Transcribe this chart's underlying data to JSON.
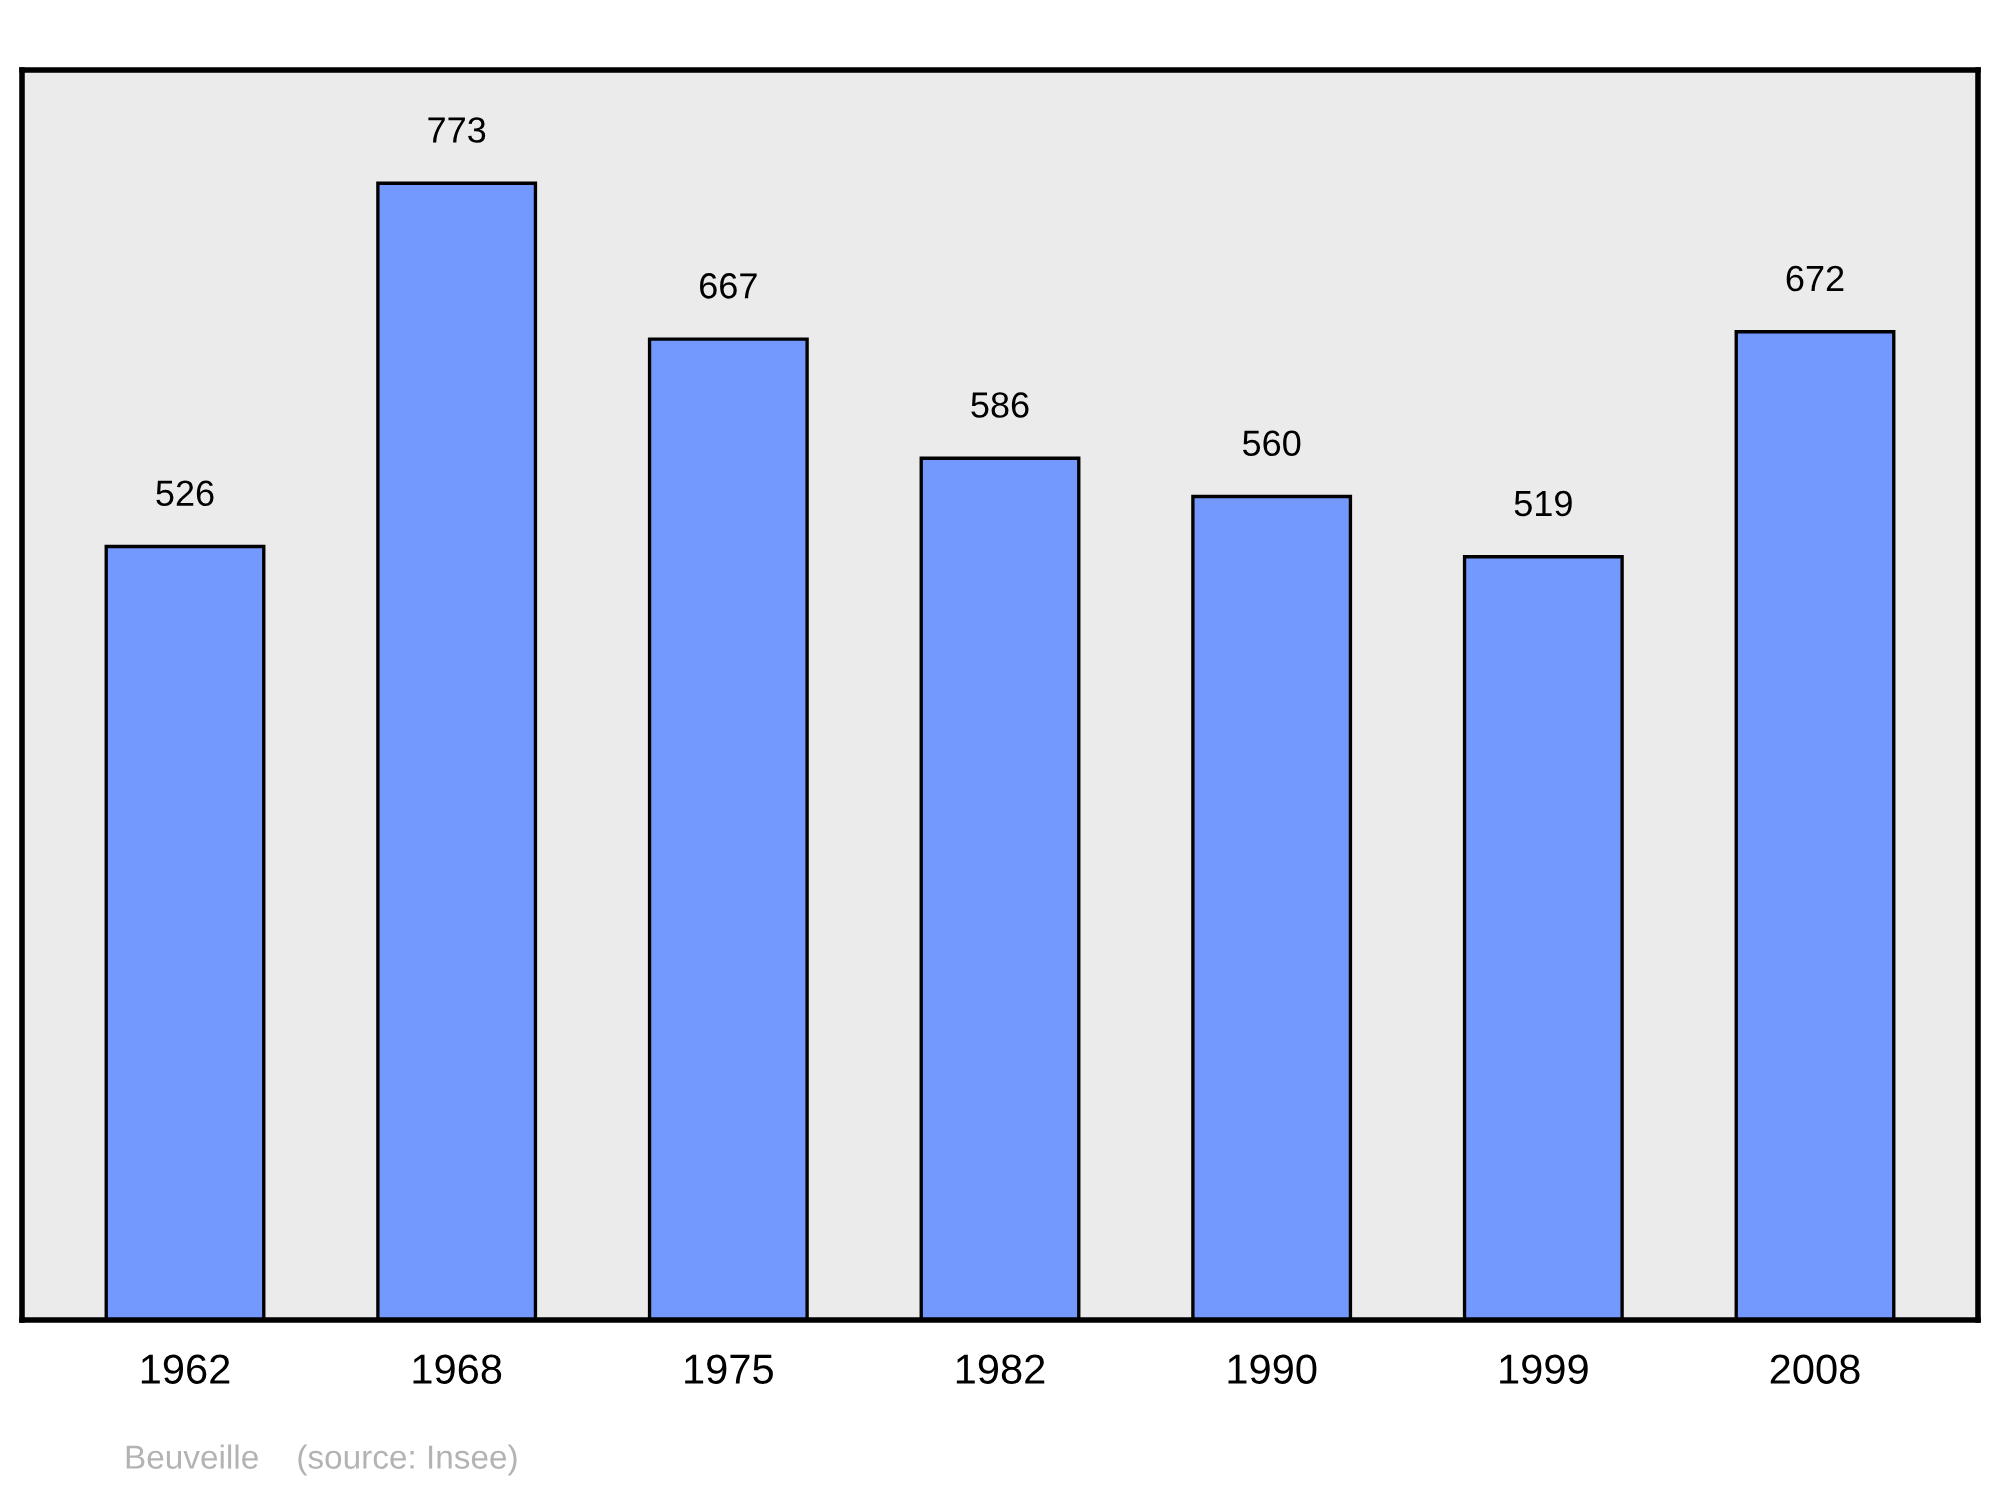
{
  "chart_data": {
    "type": "bar",
    "categories": [
      "1962",
      "1968",
      "1975",
      "1982",
      "1990",
      "1999",
      "2008"
    ],
    "values": [
      526,
      773,
      667,
      586,
      560,
      519,
      672
    ],
    "color": "#7399ff",
    "ylim": [
      0,
      850
    ],
    "data_labels": true,
    "grid": false,
    "tick_labels": "x",
    "annotations": [
      "Beuveille    (source: Insee)"
    ]
  }
}
